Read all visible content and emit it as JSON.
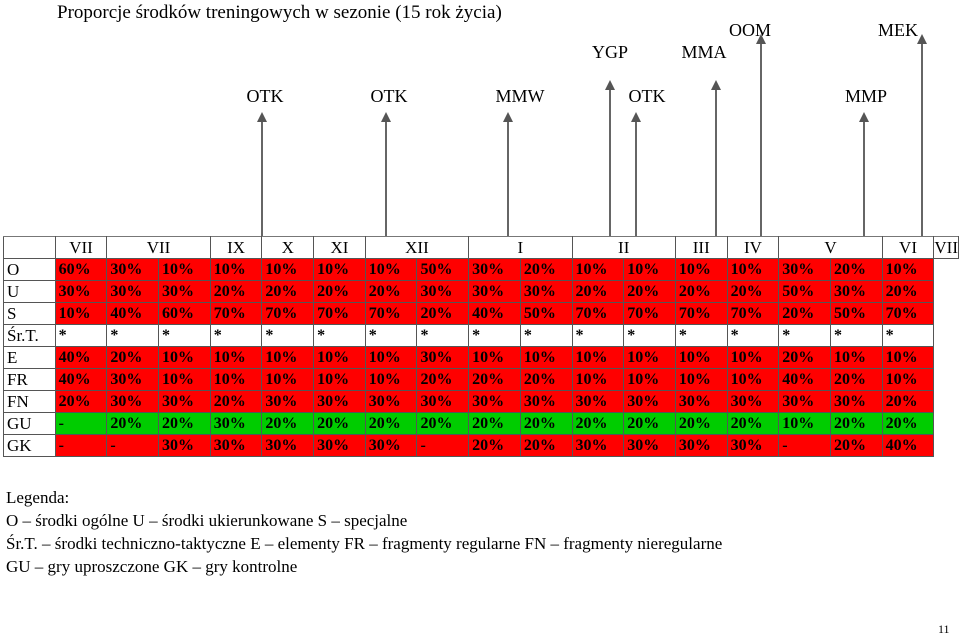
{
  "title": "Proporcje środków treningowych w sezonie (15 rok życia)",
  "labels": {
    "otk1": "OTK",
    "otk2": "OTK",
    "mmw": "MMW",
    "otk3": "OTK",
    "mmp": "MMP",
    "ygp": "YGP",
    "mma": "MMA",
    "oom": "OOM",
    "mek": "MEK"
  },
  "months": [
    "VII",
    "VII",
    "IX",
    "X",
    "XI",
    "XII",
    "I",
    "II",
    "III",
    "IV",
    "V",
    "VI",
    "VII"
  ],
  "rows": [
    {
      "label": "O",
      "cells": [
        [
          "60%",
          "r"
        ],
        [
          "30%",
          "r"
        ],
        [
          "10%",
          "r"
        ],
        [
          "10%",
          "r"
        ],
        [
          "10%",
          "r"
        ],
        [
          "10%",
          "r"
        ],
        [
          "10%",
          "r"
        ],
        [
          "50%",
          "r"
        ],
        [
          "30%",
          "r"
        ],
        [
          "20%",
          "r"
        ],
        [
          "10%",
          "r"
        ],
        [
          "10%",
          "r"
        ],
        [
          "10%",
          "r"
        ],
        [
          "10%",
          "r"
        ],
        [
          "30%",
          "r"
        ],
        [
          "20%",
          "r"
        ],
        [
          "10%",
          "r"
        ]
      ]
    },
    {
      "label": "U",
      "cells": [
        [
          "30%",
          "r"
        ],
        [
          "30%",
          "r"
        ],
        [
          "30%",
          "r"
        ],
        [
          "20%",
          "r"
        ],
        [
          "20%",
          "r"
        ],
        [
          "20%",
          "r"
        ],
        [
          "20%",
          "r"
        ],
        [
          "30%",
          "r"
        ],
        [
          "30%",
          "r"
        ],
        [
          "30%",
          "r"
        ],
        [
          "20%",
          "r"
        ],
        [
          "20%",
          "r"
        ],
        [
          "20%",
          "r"
        ],
        [
          "20%",
          "r"
        ],
        [
          "50%",
          "r"
        ],
        [
          "30%",
          "r"
        ],
        [
          "20%",
          "r"
        ]
      ]
    },
    {
      "label": "S",
      "cells": [
        [
          "10%",
          "r"
        ],
        [
          "40%",
          "r"
        ],
        [
          "60%",
          "r"
        ],
        [
          "70%",
          "r"
        ],
        [
          "70%",
          "r"
        ],
        [
          "70%",
          "r"
        ],
        [
          "70%",
          "r"
        ],
        [
          "20%",
          "r"
        ],
        [
          "40%",
          "r"
        ],
        [
          "50%",
          "r"
        ],
        [
          "70%",
          "r"
        ],
        [
          "70%",
          "r"
        ],
        [
          "70%",
          "r"
        ],
        [
          "70%",
          "r"
        ],
        [
          "20%",
          "r"
        ],
        [
          "50%",
          "r"
        ],
        [
          "70%",
          "r"
        ]
      ]
    },
    {
      "label": "Śr.T.",
      "cells": [
        [
          "*",
          "w"
        ],
        [
          "*",
          "w"
        ],
        [
          "*",
          "w"
        ],
        [
          "*",
          "w"
        ],
        [
          "*",
          "w"
        ],
        [
          "*",
          "w"
        ],
        [
          "*",
          "w"
        ],
        [
          "*",
          "w"
        ],
        [
          "*",
          "w"
        ],
        [
          "*",
          "w"
        ],
        [
          "*",
          "w"
        ],
        [
          "*",
          "w"
        ],
        [
          "*",
          "w"
        ],
        [
          "*",
          "w"
        ],
        [
          "*",
          "w"
        ],
        [
          "*",
          "w"
        ],
        [
          "*",
          "w"
        ]
      ]
    },
    {
      "label": "E",
      "cells": [
        [
          "40%",
          "r"
        ],
        [
          "20%",
          "r"
        ],
        [
          "10%",
          "r"
        ],
        [
          "10%",
          "r"
        ],
        [
          "10%",
          "r"
        ],
        [
          "10%",
          "r"
        ],
        [
          "10%",
          "r"
        ],
        [
          "30%",
          "r"
        ],
        [
          "10%",
          "r"
        ],
        [
          "10%",
          "r"
        ],
        [
          "10%",
          "r"
        ],
        [
          "10%",
          "r"
        ],
        [
          "10%",
          "r"
        ],
        [
          "10%",
          "r"
        ],
        [
          "20%",
          "r"
        ],
        [
          "10%",
          "r"
        ],
        [
          "10%",
          "r"
        ]
      ]
    },
    {
      "label": "FR",
      "cells": [
        [
          "40%",
          "r"
        ],
        [
          "30%",
          "r"
        ],
        [
          "10%",
          "r"
        ],
        [
          "10%",
          "r"
        ],
        [
          "10%",
          "r"
        ],
        [
          "10%",
          "r"
        ],
        [
          "10%",
          "r"
        ],
        [
          "20%",
          "r"
        ],
        [
          "20%",
          "r"
        ],
        [
          "20%",
          "r"
        ],
        [
          "10%",
          "r"
        ],
        [
          "10%",
          "r"
        ],
        [
          "10%",
          "r"
        ],
        [
          "10%",
          "r"
        ],
        [
          "40%",
          "r"
        ],
        [
          "20%",
          "r"
        ],
        [
          "10%",
          "r"
        ]
      ]
    },
    {
      "label": "FN",
      "cells": [
        [
          "20%",
          "r"
        ],
        [
          "30%",
          "r"
        ],
        [
          "30%",
          "r"
        ],
        [
          "20%",
          "r"
        ],
        [
          "30%",
          "r"
        ],
        [
          "30%",
          "r"
        ],
        [
          "30%",
          "r"
        ],
        [
          "30%",
          "r"
        ],
        [
          "30%",
          "r"
        ],
        [
          "30%",
          "r"
        ],
        [
          "30%",
          "r"
        ],
        [
          "30%",
          "r"
        ],
        [
          "30%",
          "r"
        ],
        [
          "30%",
          "r"
        ],
        [
          "30%",
          "r"
        ],
        [
          "30%",
          "r"
        ],
        [
          "20%",
          "r"
        ]
      ]
    },
    {
      "label": "GU",
      "cells": [
        [
          "-",
          "g"
        ],
        [
          "20%",
          "g"
        ],
        [
          "20%",
          "g"
        ],
        [
          "30%",
          "g"
        ],
        [
          "20%",
          "g"
        ],
        [
          "20%",
          "g"
        ],
        [
          "20%",
          "g"
        ],
        [
          "20%",
          "g"
        ],
        [
          "20%",
          "g"
        ],
        [
          "20%",
          "g"
        ],
        [
          "20%",
          "g"
        ],
        [
          "20%",
          "g"
        ],
        [
          "20%",
          "g"
        ],
        [
          "20%",
          "g"
        ],
        [
          "10%",
          "g"
        ],
        [
          "20%",
          "g"
        ],
        [
          "20%",
          "g"
        ]
      ]
    },
    {
      "label": "GK",
      "cells": [
        [
          "-",
          "r"
        ],
        [
          "-",
          "r"
        ],
        [
          "30%",
          "r"
        ],
        [
          "30%",
          "r"
        ],
        [
          "30%",
          "r"
        ],
        [
          "30%",
          "r"
        ],
        [
          "30%",
          "r"
        ],
        [
          "-",
          "r"
        ],
        [
          "20%",
          "r"
        ],
        [
          "20%",
          "r"
        ],
        [
          "30%",
          "r"
        ],
        [
          "30%",
          "r"
        ],
        [
          "30%",
          "r"
        ],
        [
          "30%",
          "r"
        ],
        [
          "-",
          "r"
        ],
        [
          "20%",
          "r"
        ],
        [
          "40%",
          "r"
        ]
      ]
    }
  ],
  "colors": {
    "red": "#ff0000",
    "green": "#00cc00"
  },
  "legend": {
    "heading": "Legenda:",
    "line1": "O – środki ogólne  U – środki ukierunkowane  S – specjalne",
    "line2": "Śr.T. – środki techniczno-taktyczne  E – elementy  FR – fragmenty regularne  FN – fragmenty nieregularne",
    "line3": "GU – gry uproszczone  GK – gry kontrolne"
  },
  "page_number": "11"
}
